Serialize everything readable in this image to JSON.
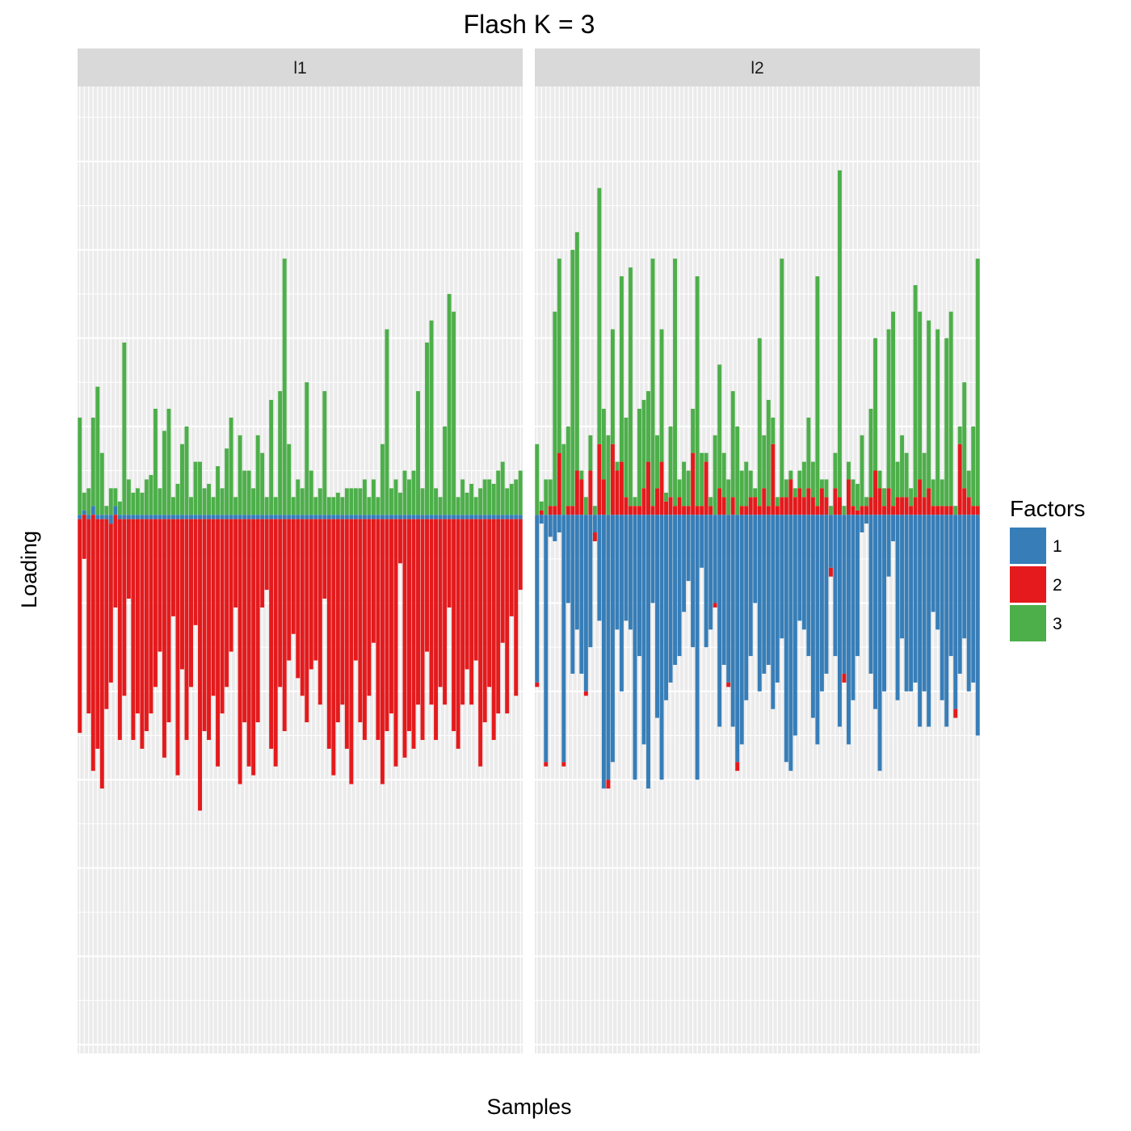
{
  "chart_data": {
    "type": "bar",
    "stacked": true,
    "diverging": true,
    "title": "Flash K = 3",
    "xlabel": "Samples",
    "ylabel": "Loading",
    "ylim": [
      -6.1,
      4.85
    ],
    "x_tick_labels": "none",
    "y_tick_labels": "none",
    "grid": true,
    "legend": {
      "title": "Factors",
      "position": "right",
      "entries": [
        {
          "label": "1",
          "color": "#377EB8"
        },
        {
          "label": "2",
          "color": "#E41A1C"
        },
        {
          "label": "3",
          "color": "#4DAF4A"
        }
      ]
    },
    "series_colors": {
      "1": "#377EB8",
      "2": "#E41A1C",
      "3": "#4DAF4A"
    },
    "facets": [
      {
        "label": "l1",
        "n_samples": 100,
        "factor1": [
          -0.05,
          0.05,
          -0.05,
          0.1,
          -0.05,
          -0.05,
          -0.05,
          -0.1,
          0.1,
          -0.05,
          -0.05,
          -0.05,
          -0.05,
          -0.05,
          -0.05,
          -0.05,
          -0.05,
          -0.05,
          -0.05,
          -0.05,
          -0.05,
          -0.05,
          -0.05,
          -0.05,
          -0.05,
          -0.05,
          -0.05,
          -0.05,
          -0.05,
          -0.05,
          -0.05,
          -0.05,
          -0.05,
          -0.05,
          -0.05,
          -0.05,
          -0.05,
          -0.05,
          -0.05,
          -0.05,
          -0.05,
          -0.05,
          -0.05,
          -0.05,
          -0.05,
          -0.05,
          -0.05,
          -0.05,
          -0.05,
          -0.05,
          -0.05,
          -0.05,
          -0.05,
          -0.05,
          -0.05,
          -0.05,
          -0.05,
          -0.05,
          -0.05,
          -0.05,
          -0.05,
          -0.05,
          -0.05,
          -0.05,
          -0.05,
          -0.05,
          -0.05,
          -0.05,
          -0.05,
          -0.05,
          -0.05,
          -0.05,
          -0.05,
          -0.05,
          -0.05,
          -0.05,
          -0.05,
          -0.05,
          -0.05,
          -0.05,
          -0.05,
          -0.05,
          -0.05,
          -0.05,
          -0.05,
          -0.05,
          -0.05,
          -0.05,
          -0.05,
          -0.05,
          -0.05,
          -0.05,
          -0.05,
          -0.05,
          -0.05,
          -0.05,
          -0.05,
          -0.05,
          -0.05,
          -0.05
        ],
        "factor2": [
          -2.42,
          -0.5,
          -2.2,
          -2.9,
          -2.6,
          -3.05,
          -2.15,
          -1.8,
          -1.05,
          -2.5,
          -2.0,
          -0.9,
          -2.5,
          -2.2,
          -2.6,
          -2.4,
          -2.2,
          -1.9,
          -1.5,
          -2.7,
          -2.3,
          -1.1,
          -2.9,
          -1.7,
          -2.5,
          -1.9,
          -1.2,
          -3.3,
          -2.4,
          -2.5,
          -2.0,
          -2.8,
          -2.2,
          -1.9,
          -1.5,
          -1.0,
          -3.0,
          -2.3,
          -2.8,
          -2.9,
          -2.3,
          -1.0,
          -0.8,
          -2.6,
          -2.8,
          -1.9,
          -2.4,
          -1.6,
          -1.3,
          -1.8,
          -2.0,
          -2.3,
          -1.7,
          -1.6,
          -2.1,
          -0.9,
          -2.6,
          -2.9,
          -2.3,
          -2.1,
          -2.6,
          -3.0,
          -1.6,
          -2.3,
          -2.5,
          -2.0,
          -1.4,
          -2.5,
          -3.0,
          -2.4,
          -2.2,
          -2.8,
          -0.5,
          -2.7,
          -2.4,
          -2.6,
          -2.1,
          -2.5,
          -1.5,
          -2.1,
          -2.5,
          -1.9,
          -2.1,
          -1.0,
          -2.4,
          -2.6,
          -2.1,
          -1.7,
          -2.1,
          -1.6,
          -2.8,
          -2.3,
          -1.9,
          -2.5,
          -2.2,
          -1.4,
          -2.2,
          -1.1,
          -2.0,
          -0.8
        ],
        "factor3": [
          1.1,
          0.2,
          0.3,
          1.0,
          1.45,
          0.7,
          0.1,
          0.3,
          0.2,
          0.15,
          1.95,
          0.4,
          0.25,
          0.3,
          0.25,
          0.4,
          0.45,
          1.2,
          0.3,
          0.95,
          1.2,
          0.2,
          0.35,
          0.8,
          1.0,
          0.2,
          0.6,
          0.6,
          0.3,
          0.35,
          0.2,
          0.55,
          0.3,
          0.75,
          1.1,
          0.2,
          0.9,
          0.5,
          0.5,
          0.3,
          0.9,
          0.7,
          0.2,
          1.3,
          0.2,
          1.4,
          2.9,
          0.8,
          0.2,
          0.4,
          0.3,
          1.5,
          0.5,
          0.2,
          0.3,
          1.4,
          0.2,
          0.2,
          0.25,
          0.2,
          0.3,
          0.3,
          0.3,
          0.3,
          0.4,
          0.2,
          0.4,
          0.2,
          0.8,
          2.1,
          0.3,
          0.4,
          0.25,
          0.5,
          0.4,
          0.5,
          1.4,
          0.3,
          1.95,
          2.2,
          0.3,
          0.2,
          1.0,
          2.5,
          2.3,
          0.2,
          0.4,
          0.25,
          0.35,
          0.2,
          0.3,
          0.4,
          0.4,
          0.35,
          0.5,
          0.6,
          0.3,
          0.35,
          0.4,
          0.5
        ]
      },
      {
        "label": "l2",
        "n_samples": 100,
        "factor1": [
          -1.9,
          -0.1,
          -2.8,
          -0.25,
          -0.3,
          -0.2,
          -2.8,
          -1.0,
          -1.8,
          -1.3,
          -1.8,
          -2.0,
          -1.5,
          -0.2,
          -1.2,
          -3.1,
          -3.0,
          -2.8,
          -1.3,
          -2.0,
          -1.2,
          -1.3,
          -3.0,
          -1.6,
          -2.6,
          -3.1,
          -1.0,
          -2.3,
          -3.0,
          -2.1,
          -1.9,
          -1.7,
          -1.6,
          -1.1,
          -0.75,
          -1.5,
          -3.0,
          -0.6,
          -1.5,
          -1.3,
          -1.0,
          -2.4,
          -1.7,
          -1.9,
          -2.4,
          -2.8,
          -2.6,
          -2.1,
          -1.6,
          -1.0,
          -2.0,
          -1.8,
          -1.7,
          -2.2,
          -1.9,
          -1.4,
          -2.8,
          -2.9,
          -2.5,
          -1.2,
          -1.3,
          -1.6,
          -2.3,
          -2.6,
          -2.0,
          -1.8,
          -0.6,
          -1.6,
          -2.4,
          -1.8,
          -2.6,
          -2.1,
          -1.6,
          -0.2,
          -0.1,
          -1.8,
          -2.2,
          -2.9,
          -2.0,
          -0.7,
          -0.3,
          -2.1,
          -1.4,
          -2.0,
          -2.0,
          -1.9,
          -2.4,
          -2.0,
          -2.4,
          -1.1,
          -1.3,
          -2.1,
          -2.4,
          -1.6,
          -2.2,
          -1.8,
          -1.4,
          -2.0,
          -1.9,
          -2.5
        ],
        "factor2": [
          -0.05,
          0.05,
          -0.05,
          0.1,
          0.1,
          0.7,
          -0.05,
          0.1,
          0.1,
          0.5,
          0.4,
          -0.05,
          0.5,
          -0.1,
          0.8,
          0.4,
          -0.1,
          0.8,
          0.5,
          0.6,
          0.2,
          0.1,
          0.1,
          0.1,
          0.3,
          0.6,
          0.1,
          0.3,
          0.6,
          0.15,
          0.2,
          0.1,
          0.2,
          0.1,
          0.1,
          0.7,
          0.1,
          0.1,
          0.6,
          0.1,
          -0.05,
          0.3,
          0.2,
          -0.05,
          0.2,
          -0.1,
          0.1,
          0.1,
          0.2,
          0.2,
          0.1,
          0.3,
          0.1,
          0.8,
          0.1,
          0.2,
          0.2,
          0.4,
          0.2,
          0.3,
          0.2,
          0.3,
          0.2,
          0.1,
          0.3,
          0.2,
          -0.1,
          0.3,
          0.2,
          -0.1,
          0.4,
          0.1,
          0.05,
          0.1,
          0.1,
          0.2,
          0.5,
          0.3,
          0.1,
          0.3,
          0.1,
          0.2,
          0.2,
          0.2,
          0.1,
          0.2,
          0.4,
          0.2,
          0.3,
          0.1,
          0.1,
          0.1,
          0.1,
          0.1,
          -0.1,
          0.8,
          0.3,
          0.2,
          0.1,
          0.1
        ],
        "factor3": [
          0.8,
          0.1,
          0.4,
          0.3,
          2.2,
          2.2,
          0.8,
          0.9,
          2.9,
          2.7,
          0.1,
          0.2,
          0.4,
          0.1,
          2.9,
          0.8,
          0.9,
          1.3,
          0.1,
          2.1,
          0.9,
          2.7,
          0.1,
          1.1,
          1.0,
          0.8,
          2.8,
          0.6,
          1.5,
          0.1,
          0.8,
          2.8,
          0.2,
          0.5,
          0.4,
          0.5,
          2.6,
          0.6,
          0.1,
          0.1,
          0.9,
          1.4,
          0.5,
          0.4,
          1.2,
          1.0,
          0.4,
          0.5,
          0.3,
          0.1,
          1.9,
          0.6,
          1.2,
          0.3,
          0.1,
          2.7,
          0.2,
          0.1,
          0.1,
          0.2,
          0.4,
          0.8,
          0.4,
          2.6,
          0.1,
          0.2,
          0.1,
          0.4,
          3.7,
          0.1,
          0.2,
          0.3,
          0.3,
          0.8,
          0.1,
          1.0,
          1.5,
          0.2,
          0.2,
          1.8,
          2.2,
          0.4,
          0.7,
          0.5,
          0.2,
          2.4,
          1.9,
          0.5,
          1.9,
          0.3,
          2.0,
          0.3,
          1.9,
          2.2,
          0.1,
          0.2,
          1.2,
          0.3,
          0.9,
          2.8
        ]
      }
    ]
  }
}
